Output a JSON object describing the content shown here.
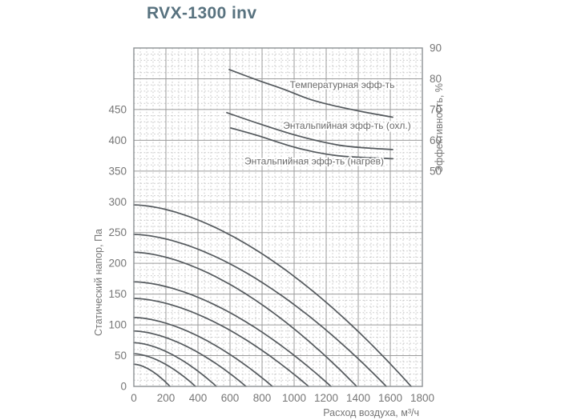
{
  "chart_data": {
    "type": "line",
    "title": "RVX-1300 inv",
    "x_axis": {
      "label": "Расход воздуха, м³/ч",
      "min": 0,
      "max": 1800,
      "ticks": [
        0,
        200,
        400,
        600,
        800,
        1000,
        1200,
        1400,
        1600,
        1800
      ],
      "minor_step": 40
    },
    "y_left": {
      "label": "Статический напор, Па",
      "min": 0,
      "axis_max": 550,
      "major_step": 50,
      "minor_step": 10,
      "ticks": [
        0,
        50,
        100,
        150,
        200,
        250,
        300,
        350,
        400,
        450
      ]
    },
    "y_right": {
      "label": "Эффективность, %",
      "ticks": [
        50,
        60,
        70,
        80,
        90
      ],
      "pa_at_50": 350,
      "pa_per_percent": 5
    },
    "curve_exponent": 1.7,
    "fan_curves": [
      {
        "p0_pa": 295,
        "q_max": 1730
      },
      {
        "p0_pa": 247,
        "q_max": 1575
      },
      {
        "p0_pa": 218,
        "q_max": 1390
      },
      {
        "p0_pa": 170,
        "q_max": 1230
      },
      {
        "p0_pa": 143,
        "q_max": 1090
      },
      {
        "p0_pa": 112,
        "q_max": 865
      },
      {
        "p0_pa": 90,
        "q_max": 700
      },
      {
        "p0_pa": 71,
        "q_max": 515
      },
      {
        "p0_pa": 53,
        "q_max": 385
      },
      {
        "p0_pa": 36,
        "q_max": 225
      }
    ],
    "efficiency_curves": [
      {
        "name": "temperature",
        "label": "Температурная эфф-ть",
        "points": [
          [
            595,
            83
          ],
          [
            775,
            79.5
          ],
          [
            940,
            76.5
          ],
          [
            1105,
            73.2
          ],
          [
            1270,
            71
          ],
          [
            1435,
            69.2
          ],
          [
            1615,
            67.5
          ]
        ],
        "label_pos": [
          1300,
          78
        ]
      },
      {
        "name": "enthalpy-cooling",
        "label": "Энтальпийная эфф-ть (охл.)",
        "points": [
          [
            580,
            69
          ],
          [
            775,
            65.5
          ],
          [
            1020,
            61.5
          ],
          [
            1270,
            58.5
          ],
          [
            1455,
            57.5
          ],
          [
            1615,
            57
          ]
        ],
        "label_pos": [
          1330,
          64.8
        ]
      },
      {
        "name": "enthalpy-heating",
        "label": "Энтальпийная эфф-ть (нагрев)",
        "points": [
          [
            605,
            64
          ],
          [
            775,
            61.5
          ],
          [
            1020,
            57.5
          ],
          [
            1270,
            55
          ],
          [
            1615,
            54
          ]
        ],
        "label_pos": [
          1125,
          53.2
        ]
      }
    ],
    "colors": {
      "title": "#58727f",
      "curve": "#54595d",
      "grid_major": "#9b9b9b",
      "grid_minor": "#c6c6c6",
      "axis_text": "#767676",
      "border": "#8d9194",
      "label_text": "#6a6a6a",
      "background": "#ffffff"
    }
  }
}
